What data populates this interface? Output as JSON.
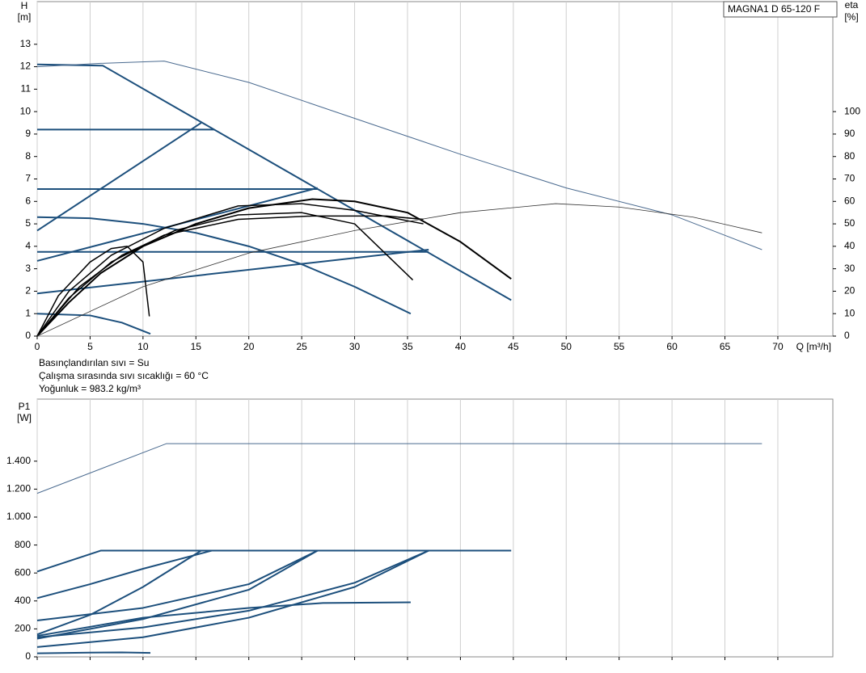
{
  "chart_data": [
    {
      "type": "line",
      "y_label": "H",
      "y_unit": "[m]",
      "y2_label": "eta",
      "y2_unit": "[%]",
      "x_label": "Q [m³/h]",
      "model": "MAGNA1 D 65-120 F",
      "annotations": [
        "Basınçlandırılan sıvı = Su",
        "Çalışma sırasında sıvı sıcaklığı = 60 °C",
        "Yoğunluk = 983.2 kg/m³"
      ],
      "xlim": [
        0,
        75.2
      ],
      "xticks": [
        0,
        5,
        10,
        15,
        20,
        25,
        30,
        35,
        40,
        45,
        50,
        55,
        60,
        65,
        70
      ],
      "show_xtick_labels": true,
      "ylim": [
        0,
        14.9
      ],
      "yticks": [
        0,
        1,
        2,
        3,
        4,
        5,
        6,
        7,
        8,
        9,
        10,
        11,
        12,
        13
      ],
      "y2lim": [
        0,
        149
      ],
      "y2ticks": [
        0,
        10,
        20,
        30,
        40,
        50,
        60,
        70,
        80,
        90,
        100
      ],
      "grid": "vertical",
      "series": [
        {
          "color": "#1c4f7c",
          "line_width": 2,
          "x": [
            0,
            6.2,
            44.8
          ],
          "values": [
            12.1,
            12.05,
            1.6
          ]
        },
        {
          "color": "#1c4f7c",
          "line_width": 2,
          "x": [
            0,
            16.7
          ],
          "values": [
            9.2,
            9.2
          ]
        },
        {
          "color": "#1c4f7c",
          "line_width": 2,
          "x": [
            0,
            26.5
          ],
          "values": [
            6.55,
            6.55
          ]
        },
        {
          "color": "#1c4f7c",
          "line_width": 2,
          "x": [
            0,
            37
          ],
          "values": [
            3.75,
            3.75
          ]
        },
        {
          "color": "#1c4f7c",
          "line_width": 2,
          "x": [
            0,
            15.5
          ],
          "values": [
            4.7,
            9.5
          ]
        },
        {
          "color": "#1c4f7c",
          "line_width": 2,
          "x": [
            0,
            26.5
          ],
          "values": [
            3.35,
            6.6
          ]
        },
        {
          "color": "#1c4f7c",
          "line_width": 2,
          "x": [
            0,
            37
          ],
          "values": [
            1.9,
            3.85
          ]
        },
        {
          "color": "#1c4f7c",
          "line_width": 2,
          "x": [
            0,
            5,
            10,
            15,
            20,
            25,
            30,
            35.3
          ],
          "values": [
            5.3,
            5.25,
            5.0,
            4.6,
            4.0,
            3.2,
            2.2,
            1.0
          ]
        },
        {
          "color": "#1c4f7c",
          "line_width": 2,
          "x": [
            0,
            5,
            8,
            10.7
          ],
          "values": [
            1.0,
            0.92,
            0.6,
            0.1
          ]
        },
        {
          "color": "#4a6a8f",
          "line_width": 1,
          "x": [
            0,
            6,
            12,
            20,
            30,
            40,
            50,
            60,
            68.5
          ],
          "values": [
            12.0,
            12.15,
            12.25,
            11.3,
            9.7,
            8.1,
            6.6,
            5.4,
            3.85
          ]
        },
        {
          "color": "#000000",
          "line_width": 2,
          "axis": "y2",
          "x": [
            0,
            3,
            6,
            10,
            15,
            20,
            26,
            30,
            35,
            40,
            44.8
          ],
          "values": [
            0,
            15,
            28,
            40,
            50,
            57,
            61,
            60,
            55,
            42,
            25.5
          ]
        },
        {
          "color": "#000000",
          "line_width": 1.5,
          "axis": "y2",
          "x": [
            0,
            3,
            7,
            12,
            19,
            26,
            33,
            36.5
          ],
          "values": [
            0,
            17,
            33,
            45,
            52,
            53.5,
            53.5,
            52
          ]
        },
        {
          "color": "#000000",
          "line_width": 1.5,
          "axis": "y2",
          "x": [
            0,
            4,
            8,
            13,
            19,
            25,
            30,
            35.5
          ],
          "values": [
            0,
            22,
            36,
            47,
            54,
            55,
            50,
            25
          ]
        },
        {
          "color": "#000000",
          "line_width": 1.5,
          "axis": "y2",
          "x": [
            0,
            3,
            7,
            12,
            19,
            25,
            30,
            36.5
          ],
          "values": [
            0,
            20,
            36,
            48,
            58,
            59,
            56,
            50
          ]
        },
        {
          "color": "#000000",
          "line_width": 1.5,
          "axis": "y2",
          "x": [
            0,
            2,
            5,
            7,
            8.5,
            10,
            10.6
          ],
          "values": [
            0,
            18,
            33,
            39,
            40,
            33,
            8.8
          ]
        },
        {
          "color": "#333333",
          "line_width": 0.8,
          "axis": "y2",
          "x": [
            0,
            10,
            20,
            30,
            40,
            49,
            55,
            62,
            68.5
          ],
          "values": [
            0,
            22,
            37,
            47,
            55,
            59,
            57.5,
            53,
            46
          ]
        }
      ]
    },
    {
      "type": "line",
      "y_label": "P1",
      "y_unit": "[W]",
      "xlim": [
        0,
        75.2
      ],
      "xticks": [
        0,
        5,
        10,
        15,
        20,
        25,
        30,
        35,
        40,
        45,
        50,
        55,
        60,
        65,
        70
      ],
      "show_xtick_labels": false,
      "ylim": [
        0,
        1844
      ],
      "yticks": [
        0,
        200,
        400,
        600,
        800,
        {
          "value": 1000,
          "label": "1.000"
        },
        {
          "value": 1200,
          "label": "1.200"
        },
        {
          "value": 1400,
          "label": "1.400"
        }
      ],
      "grid": "vertical",
      "series": [
        {
          "color": "#4a6a8f",
          "line_width": 1,
          "x": [
            0,
            12.2,
            68.5
          ],
          "values": [
            1170,
            1525,
            1525
          ]
        },
        {
          "color": "#1c4f7c",
          "line_width": 2,
          "x": [
            0,
            6,
            44.8
          ],
          "values": [
            610,
            760,
            760
          ]
        },
        {
          "color": "#1c4f7c",
          "line_width": 2,
          "x": [
            0,
            5,
            10,
            15.5
          ],
          "values": [
            160,
            300,
            500,
            760
          ]
        },
        {
          "color": "#1c4f7c",
          "line_width": 2,
          "x": [
            0,
            5,
            10,
            16.5
          ],
          "values": [
            420,
            520,
            630,
            760
          ]
        },
        {
          "color": "#1c4f7c",
          "line_width": 2,
          "x": [
            0,
            10,
            20,
            26.5
          ],
          "values": [
            130,
            270,
            480,
            760
          ]
        },
        {
          "color": "#1c4f7c",
          "line_width": 2,
          "x": [
            0,
            10,
            20,
            26.5
          ],
          "values": [
            260,
            350,
            520,
            760
          ]
        },
        {
          "color": "#1c4f7c",
          "line_width": 2,
          "x": [
            0,
            10,
            20,
            30,
            37
          ],
          "values": [
            70,
            140,
            280,
            500,
            760
          ]
        },
        {
          "color": "#1c4f7c",
          "line_width": 2,
          "x": [
            0,
            10,
            20,
            30,
            37
          ],
          "values": [
            140,
            210,
            330,
            530,
            760
          ]
        },
        {
          "color": "#1c4f7c",
          "line_width": 2,
          "x": [
            0,
            10,
            20,
            27,
            35.3
          ],
          "values": [
            150,
            280,
            350,
            385,
            390
          ]
        },
        {
          "color": "#1c4f7c",
          "line_width": 2,
          "x": [
            0,
            5,
            8,
            10.7
          ],
          "values": [
            25,
            30,
            32,
            28
          ]
        }
      ]
    }
  ]
}
